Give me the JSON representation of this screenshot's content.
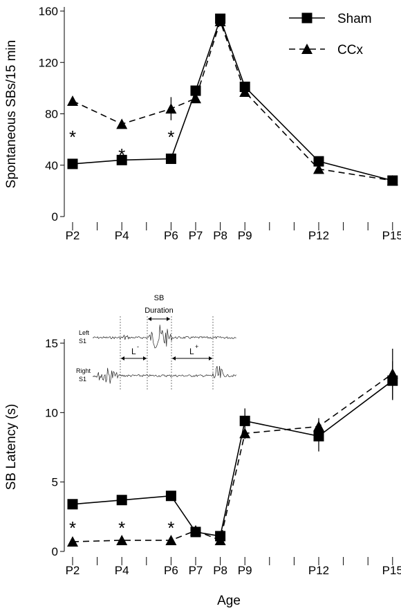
{
  "chart_data": [
    {
      "type": "line",
      "xlabel": "",
      "ylabel": "Spontaneous SBs/15 min",
      "yticks": [
        0,
        40,
        80,
        120,
        160
      ],
      "ylim": [
        0,
        160
      ],
      "categories": [
        "P2",
        "P4",
        "P6",
        "P7",
        "P8",
        "P9",
        "P12",
        "P15"
      ],
      "x": [
        2,
        4,
        6,
        7,
        8,
        9,
        12,
        15
      ],
      "legend_position": "top-right",
      "series": [
        {
          "name": "Sham",
          "marker": "square",
          "line": "solid",
          "values": [
            41,
            44,
            45,
            98,
            154,
            101,
            43,
            28
          ],
          "errors": [
            2,
            2,
            2,
            2,
            2,
            2,
            2,
            2
          ]
        },
        {
          "name": "CCx",
          "marker": "triangle",
          "line": "dashed",
          "values": [
            90,
            72,
            84,
            92,
            152,
            97,
            37,
            28
          ],
          "errors": [
            3,
            3,
            9,
            3,
            2,
            2,
            2,
            2
          ]
        }
      ],
      "annotations": [
        {
          "text": "*",
          "x": 2,
          "y": 64
        },
        {
          "text": "*",
          "x": 4,
          "y": 50
        },
        {
          "text": "*",
          "x": 6,
          "y": 64
        }
      ]
    },
    {
      "type": "line",
      "xlabel": "Age",
      "ylabel": "SB Latency (s)",
      "yticks": [
        0,
        5,
        10,
        15
      ],
      "ylim": [
        0,
        15
      ],
      "categories": [
        "P2",
        "P4",
        "P6",
        "P7",
        "P8",
        "P9",
        "P12",
        "P15"
      ],
      "x": [
        2,
        4,
        6,
        7,
        8,
        9,
        12,
        15
      ],
      "series": [
        {
          "name": "Sham",
          "marker": "square",
          "line": "solid",
          "values": [
            3.4,
            3.7,
            4.0,
            1.4,
            1.1,
            9.4,
            8.3,
            12.3
          ],
          "errors": [
            0.2,
            0.2,
            0.2,
            0.2,
            0.3,
            0.9,
            1.1,
            1.4
          ]
        },
        {
          "name": "CCx",
          "marker": "triangle",
          "line": "dashed",
          "values": [
            0.7,
            0.8,
            0.8,
            1.5,
            0.8,
            8.5,
            9.0,
            12.8
          ],
          "errors": [
            0.1,
            0.1,
            0.1,
            0.2,
            0.2,
            0.4,
            0.6,
            1.8
          ]
        }
      ],
      "annotations": [
        {
          "text": "*",
          "x": 2,
          "y": 1.9
        },
        {
          "text": "*",
          "x": 4,
          "y": 1.9
        },
        {
          "text": "*",
          "x": 6,
          "y": 1.9
        }
      ],
      "inset": {
        "title_line1": "SB",
        "title_line2": "Duration",
        "left_label_1": "Left",
        "left_label_2": "S1",
        "right_label_1": "Right",
        "right_label_2": "S1",
        "l_minus": "L",
        "l_minus_sup": "-",
        "l_plus": "L",
        "l_plus_sup": "+"
      }
    }
  ]
}
